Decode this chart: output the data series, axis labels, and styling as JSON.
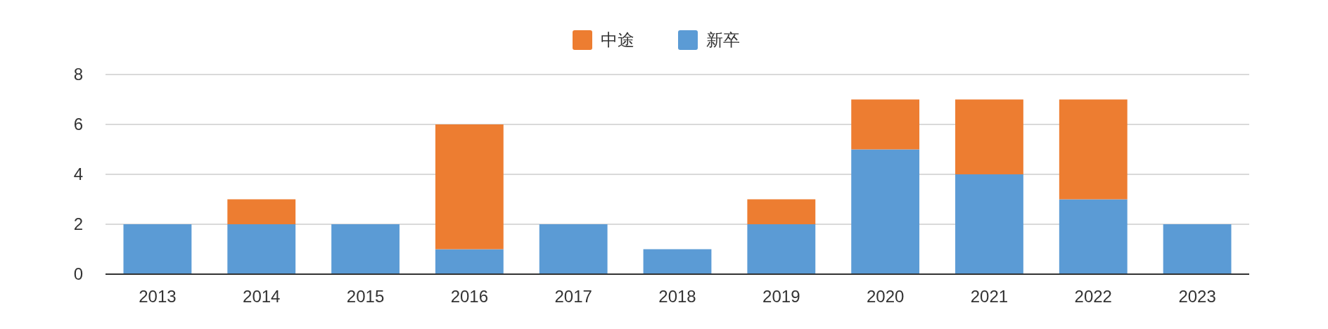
{
  "chart_data": {
    "type": "bar",
    "stacked": true,
    "categories": [
      "2013",
      "2014",
      "2015",
      "2016",
      "2017",
      "2018",
      "2019",
      "2020",
      "2021",
      "2022",
      "2023"
    ],
    "series": [
      {
        "name": "新卒",
        "color": "#5b9bd5",
        "values": [
          2,
          2,
          2,
          1,
          2,
          1,
          2,
          5,
          4,
          3,
          2
        ]
      },
      {
        "name": "中途",
        "color": "#ed7d31",
        "values": [
          null,
          1,
          null,
          5,
          null,
          null,
          1,
          2,
          3,
          4,
          null
        ]
      }
    ],
    "ylim": [
      0,
      8
    ],
    "yticks": [
      0,
      2,
      4,
      6,
      8
    ],
    "grid": "y",
    "legend": "top"
  }
}
